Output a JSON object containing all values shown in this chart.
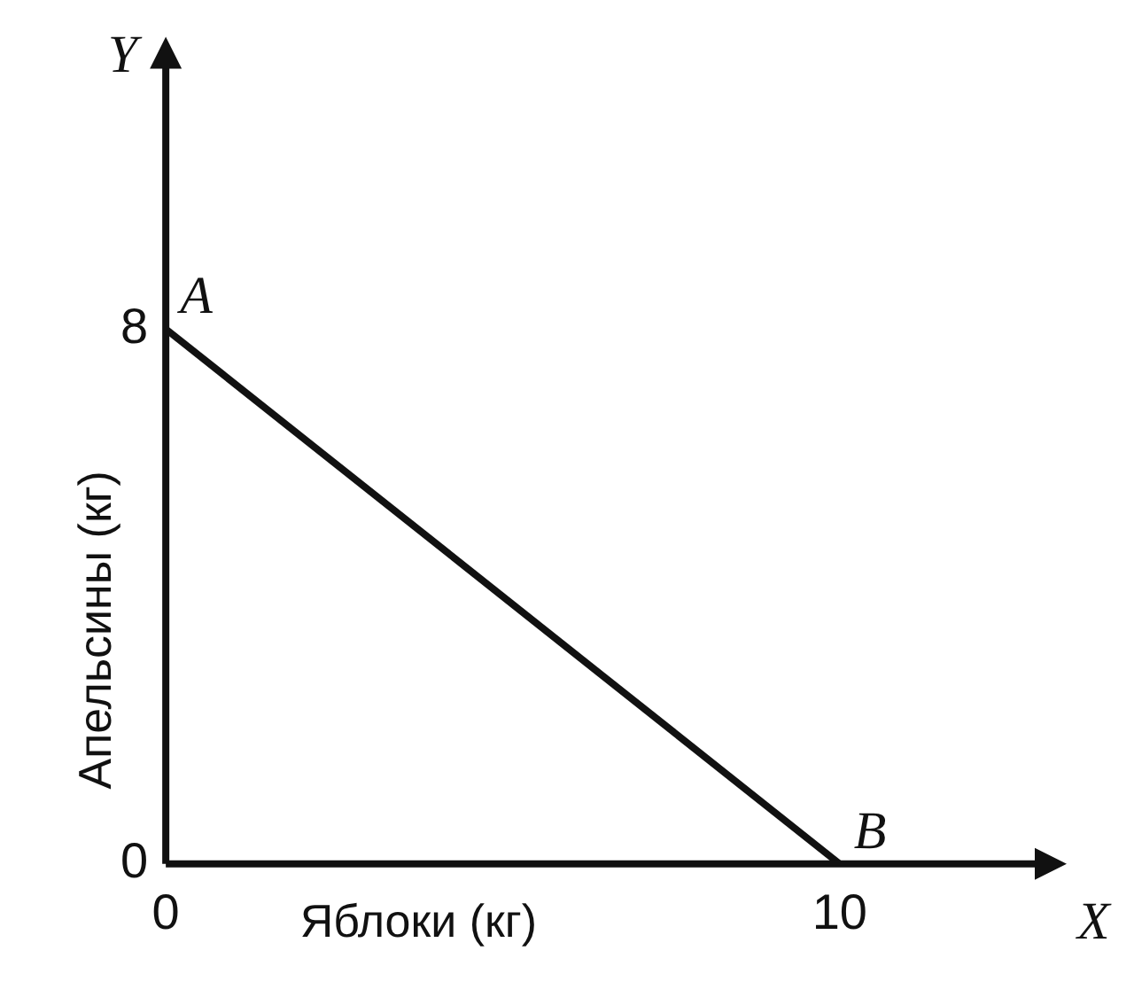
{
  "chart_data": {
    "type": "line",
    "xlabel": "Яблоки (кг)",
    "ylabel": "Апельсины (кг)",
    "x": [
      0,
      10
    ],
    "series": [
      {
        "color": "#111111",
        "values": [
          8,
          0
        ]
      }
    ],
    "xlim": [
      0,
      13
    ],
    "ylim": [
      0,
      12
    ],
    "xticks": [
      0,
      10
    ],
    "yticks": [
      0,
      8
    ],
    "grid": false,
    "legend": false,
    "marker": "none",
    "line_style": "solid",
    "annotations": [
      "Y",
      "X",
      {
        "text": "A",
        "x": 0,
        "y": 8
      },
      {
        "text": "B",
        "x": 10,
        "y": 0
      }
    ]
  }
}
